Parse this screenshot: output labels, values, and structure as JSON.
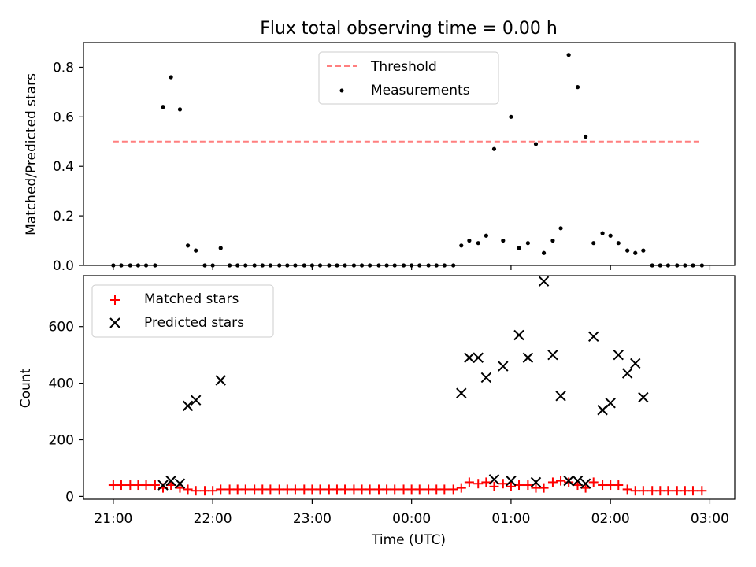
{
  "chart_data": [
    {
      "type": "scatter",
      "title": "Flux total observing time = 0.00 h",
      "ylabel": "Matched/Predicted stars",
      "xlabel": "",
      "x_ticks": [
        "21:00",
        "22:00",
        "23:00",
        "00:00",
        "01:00",
        "02:00",
        "03:00"
      ],
      "x_tick_hours": [
        0,
        1,
        2,
        3,
        4,
        5,
        6
      ],
      "xlim_hours": [
        -0.3,
        6.25
      ],
      "ylim": [
        0,
        0.9
      ],
      "y_ticks": [
        "0.0",
        "0.2",
        "0.4",
        "0.6",
        "0.8"
      ],
      "y_tick_values": [
        0,
        0.2,
        0.4,
        0.6,
        0.8
      ],
      "legend": {
        "threshold": "Threshold",
        "measurements": "Measurements"
      },
      "legend_position": "upper center",
      "threshold": {
        "value": 0.5,
        "x_start_hours": 0.0,
        "x_end_hours": 5.92,
        "color": "#ff7f7f"
      },
      "series": [
        {
          "name": "Measurements",
          "color": "#000000",
          "x_hours": [
            0.0,
            0.08,
            0.17,
            0.25,
            0.33,
            0.42,
            0.5,
            0.58,
            0.67,
            0.75,
            0.83,
            0.92,
            1.0,
            1.08,
            1.17,
            1.25,
            1.33,
            1.42,
            1.5,
            1.58,
            1.67,
            1.75,
            1.83,
            1.92,
            2.0,
            2.08,
            2.17,
            2.25,
            2.33,
            2.42,
            2.5,
            2.58,
            2.67,
            2.75,
            2.83,
            2.92,
            3.0,
            3.08,
            3.17,
            3.25,
            3.33,
            3.42,
            3.5,
            3.58,
            3.67,
            3.75,
            3.83,
            3.92,
            4.0,
            4.08,
            4.17,
            4.25,
            4.33,
            4.42,
            4.5,
            4.58,
            4.67,
            4.75,
            4.83,
            4.92,
            5.0,
            5.08,
            5.17,
            5.25,
            5.33,
            5.42,
            5.5,
            5.58,
            5.67,
            5.75,
            5.83,
            5.92
          ],
          "y": [
            0,
            0,
            0,
            0,
            0,
            0,
            0.64,
            0.76,
            0.63,
            0.08,
            0.06,
            0,
            0,
            0.07,
            0,
            0,
            0,
            0,
            0,
            0,
            0,
            0,
            0,
            0,
            0,
            0,
            0,
            0,
            0,
            0,
            0,
            0,
            0,
            0,
            0,
            0,
            0,
            0,
            0,
            0,
            0,
            0,
            0.08,
            0.1,
            0.09,
            0.12,
            0.47,
            0.1,
            0.6,
            0.07,
            0.09,
            0.49,
            0.05,
            0.1,
            0.15,
            0.85,
            0.72,
            0.52,
            0.09,
            0.13,
            0.12,
            0.09,
            0.06,
            0.05,
            0.06,
            0,
            0,
            0,
            0,
            0,
            0,
            0
          ]
        }
      ]
    },
    {
      "type": "scatter",
      "title": "",
      "xlabel": "Time (UTC)",
      "ylabel": "Count",
      "x_ticks": [
        "21:00",
        "22:00",
        "23:00",
        "00:00",
        "01:00",
        "02:00",
        "03:00"
      ],
      "x_tick_hours": [
        0,
        1,
        2,
        3,
        4,
        5,
        6
      ],
      "xlim_hours": [
        -0.3,
        6.25
      ],
      "ylim": [
        -10,
        780
      ],
      "y_ticks": [
        "0",
        "200",
        "400",
        "600"
      ],
      "y_tick_values": [
        0,
        200,
        400,
        600
      ],
      "legend_position": "upper left",
      "series": [
        {
          "name": "Matched stars",
          "marker": "+",
          "color": "#ff0000",
          "x_hours": [
            0.0,
            0.08,
            0.17,
            0.25,
            0.33,
            0.42,
            0.5,
            0.58,
            0.67,
            0.75,
            0.83,
            0.92,
            1.0,
            1.08,
            1.17,
            1.25,
            1.33,
            1.42,
            1.5,
            1.58,
            1.67,
            1.75,
            1.83,
            1.92,
            2.0,
            2.08,
            2.17,
            2.25,
            2.33,
            2.42,
            2.5,
            2.58,
            2.67,
            2.75,
            2.83,
            2.92,
            3.0,
            3.08,
            3.17,
            3.25,
            3.33,
            3.42,
            3.5,
            3.58,
            3.67,
            3.75,
            3.83,
            3.92,
            4.0,
            4.08,
            4.17,
            4.25,
            4.33,
            4.42,
            4.5,
            4.58,
            4.67,
            4.75,
            4.83,
            4.92,
            5.0,
            5.08,
            5.17,
            5.25,
            5.33,
            5.42,
            5.5,
            5.58,
            5.67,
            5.75,
            5.83,
            5.92
          ],
          "y": [
            40,
            40,
            40,
            40,
            40,
            40,
            30,
            40,
            30,
            25,
            20,
            20,
            20,
            25,
            25,
            25,
            25,
            25,
            25,
            25,
            25,
            25,
            25,
            25,
            25,
            25,
            25,
            25,
            25,
            25,
            25,
            25,
            25,
            25,
            25,
            25,
            25,
            25,
            25,
            25,
            25,
            25,
            30,
            50,
            45,
            50,
            35,
            45,
            35,
            40,
            40,
            30,
            30,
            50,
            55,
            50,
            40,
            30,
            50,
            40,
            40,
            40,
            25,
            20,
            20,
            20,
            20,
            20,
            20,
            20,
            20,
            20
          ]
        },
        {
          "name": "Predicted stars",
          "marker": "x",
          "color": "#000000",
          "x_hours": [
            0.5,
            0.58,
            0.67,
            0.75,
            0.83,
            1.08,
            3.5,
            3.58,
            3.67,
            3.75,
            3.83,
            3.92,
            4.0,
            4.08,
            4.17,
            4.25,
            4.33,
            4.42,
            4.5,
            4.58,
            4.67,
            4.75,
            4.83,
            4.92,
            5.0,
            5.08,
            5.17,
            5.25,
            5.33
          ],
          "y": [
            40,
            55,
            45,
            320,
            340,
            410,
            365,
            490,
            490,
            420,
            60,
            460,
            55,
            570,
            490,
            50,
            760,
            500,
            355,
            55,
            55,
            45,
            565,
            305,
            330,
            500,
            435,
            470,
            350
          ]
        }
      ]
    }
  ]
}
